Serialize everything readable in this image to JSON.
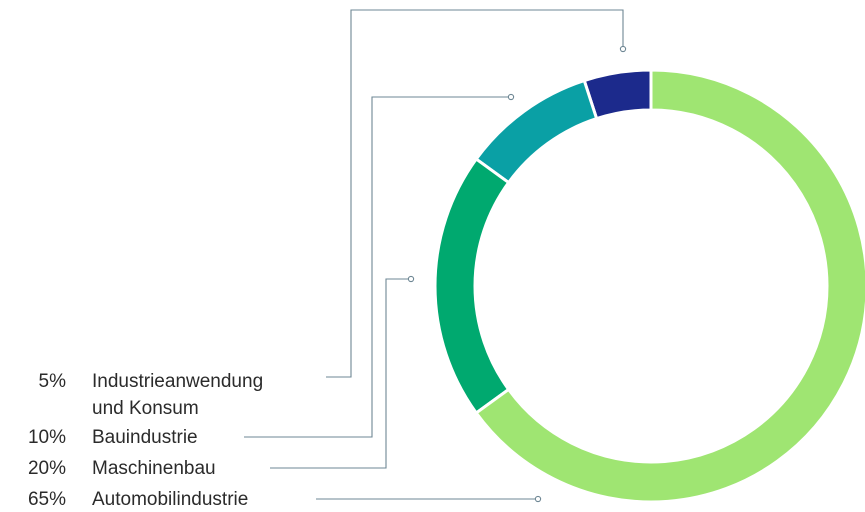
{
  "chart_data": {
    "type": "pie",
    "variant": "donut",
    "title": "",
    "legend_position": "left",
    "categories": [
      "Industrieanwendung und Konsum",
      "Bauindustrie",
      "Maschinenbau",
      "Automobilindustrie"
    ],
    "values": [
      5,
      10,
      20,
      65
    ],
    "unit": "%",
    "labels": [
      {
        "pct": "5%",
        "name_lines": [
          "Industrieanwendung",
          "und Konsum"
        ],
        "color": "#1c2a8c"
      },
      {
        "pct": "10%",
        "name_lines": [
          "Bauindustrie"
        ],
        "color": "#0aa0a5"
      },
      {
        "pct": "20%",
        "name_lines": [
          "Maschinenbau"
        ],
        "color": "#00a96f"
      },
      {
        "pct": "65%",
        "name_lines": [
          "Automobilindustrie"
        ],
        "color": "#9fe572"
      }
    ]
  }
}
